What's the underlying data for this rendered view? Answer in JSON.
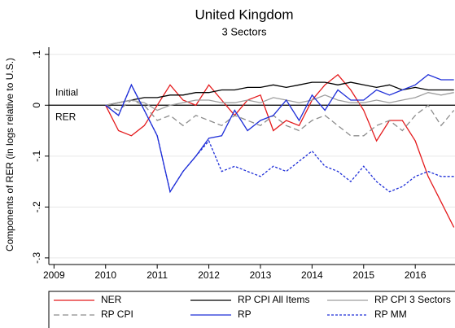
{
  "chart_data": {
    "type": "line",
    "title": "United Kingdom",
    "subtitle": "3 Sectors",
    "ylabel": "Components of RER (in logs relative to U.S.)",
    "annotations": [
      "Initial",
      "RER"
    ],
    "reference_line": 0,
    "x": [
      2010,
      2010.25,
      2010.5,
      2010.75,
      2011,
      2011.25,
      2011.5,
      2011.75,
      2012,
      2012.25,
      2012.5,
      2012.75,
      2013,
      2013.25,
      2013.5,
      2013.75,
      2014,
      2014.25,
      2014.5,
      2014.75,
      2015,
      2015.25,
      2015.5,
      2015.75,
      2016,
      2016.25,
      2016.5,
      2016.75
    ],
    "series": [
      {
        "name": "NER",
        "color": "#e41a1c",
        "style": "solid",
        "values": [
          0,
          -0.05,
          -0.06,
          -0.04,
          0,
          0.04,
          0.01,
          0,
          0.04,
          0.01,
          -0.02,
          0.01,
          0.02,
          -0.05,
          -0.03,
          -0.04,
          0.01,
          0.04,
          0.06,
          0.03,
          -0.01,
          -0.07,
          -0.03,
          -0.03,
          -0.07,
          -0.14,
          -0.19,
          -0.24
        ]
      },
      {
        "name": "RP CPI All Items",
        "color": "#000000",
        "style": "solid",
        "values": [
          0,
          0.005,
          0.01,
          0.015,
          0.015,
          0.02,
          0.02,
          0.025,
          0.025,
          0.03,
          0.03,
          0.035,
          0.035,
          0.04,
          0.035,
          0.04,
          0.045,
          0.045,
          0.04,
          0.045,
          0.04,
          0.035,
          0.04,
          0.03,
          0.035,
          0.03,
          0.03,
          0.03
        ]
      },
      {
        "name": "RP CPI 3 Sectors",
        "color": "#9e9e9e",
        "style": "solid",
        "values": [
          0,
          0.005,
          0.01,
          0.005,
          -0.01,
          0,
          0.005,
          0.01,
          0.01,
          0.005,
          0.005,
          0.01,
          0.005,
          0.015,
          0.01,
          0.005,
          0.01,
          0.02,
          0.01,
          0.005,
          0.005,
          0.01,
          0.005,
          0.01,
          0.015,
          0.025,
          0.02,
          0.025
        ]
      },
      {
        "name": "RP CPI",
        "color": "#8c8c8c",
        "style": "dashed",
        "values": [
          0,
          -0.01,
          0.01,
          0,
          -0.03,
          -0.02,
          -0.04,
          -0.02,
          -0.03,
          -0.04,
          -0.02,
          -0.03,
          -0.04,
          -0.02,
          -0.04,
          -0.05,
          -0.03,
          -0.02,
          -0.04,
          -0.06,
          -0.06,
          -0.04,
          -0.03,
          -0.05,
          -0.02,
          0,
          -0.04,
          -0.01
        ]
      },
      {
        "name": "RP",
        "color": "#1f2fd8",
        "style": "solid",
        "values": [
          0,
          -0.02,
          0.04,
          -0.01,
          -0.06,
          -0.17,
          -0.13,
          -0.1,
          -0.065,
          -0.06,
          -0.01,
          -0.05,
          -0.03,
          -0.02,
          0.01,
          -0.03,
          0.02,
          -0.01,
          0.03,
          0.01,
          0.01,
          0.03,
          0.02,
          0.03,
          0.04,
          0.06,
          0.05,
          0.05
        ]
      },
      {
        "name": "RP MM",
        "color": "#1f2fd8",
        "style": "dashed",
        "values": [
          0,
          -0.02,
          0.04,
          -0.01,
          -0.06,
          -0.17,
          -0.13,
          -0.1,
          -0.07,
          -0.13,
          -0.12,
          -0.13,
          -0.14,
          -0.12,
          -0.13,
          -0.11,
          -0.09,
          -0.12,
          -0.13,
          -0.15,
          -0.12,
          -0.15,
          -0.17,
          -0.16,
          -0.14,
          -0.13,
          -0.14,
          -0.14
        ]
      }
    ],
    "xlim": [
      2008.9,
      2016.77
    ],
    "ylim": [
      -0.313,
      0.114
    ],
    "xticks": [
      2009,
      2010,
      2011,
      2012,
      2013,
      2014,
      2015,
      2016
    ],
    "yticks": [
      {
        "value": -0.3,
        "label": "-.3"
      },
      {
        "value": -0.2,
        "label": "-.2"
      },
      {
        "value": -0.1,
        "label": "-.1"
      },
      0,
      {
        "value": 0.1,
        "label": ".1"
      }
    ],
    "grid": true,
    "legend": "bottom"
  }
}
